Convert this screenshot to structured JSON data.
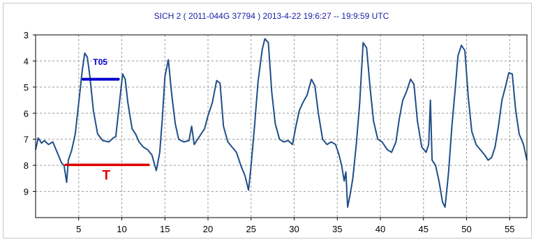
{
  "chart_data": {
    "type": "line",
    "title": "SICH 2   ( 2011-044G   37794 )   2013-4-22  19:6:27 -- 19:9:59 UTC",
    "xlabel": "",
    "ylabel": "",
    "xlim": [
      0,
      57
    ],
    "ylim": [
      3,
      10
    ],
    "y_inverted": true,
    "grid": true,
    "x_ticks": [
      "5",
      "10",
      "15",
      "20",
      "25",
      "30",
      "35",
      "40",
      "45",
      "50",
      "55"
    ],
    "y_ticks": [
      "3",
      "4",
      "5",
      "6",
      "7",
      "8",
      "9"
    ],
    "colors": {
      "series": "#1f4f88",
      "t05_marker": "#0000cc",
      "t_marker": "#dd0000",
      "title": "#1a1aa6",
      "grid": "#9a9a9a"
    },
    "annotations": [
      {
        "label": "T05",
        "x_start": 5.5,
        "x_end": 9.6,
        "y": 4.7,
        "label_x": 7.5,
        "label_y": 4.15
      },
      {
        "label": "T",
        "x_start": 3.5,
        "x_end": 13.1,
        "y": 7.98,
        "label_x": 8.2,
        "label_y": 8.55
      }
    ],
    "series": [
      {
        "values": [
          [
            0.0,
            7.4
          ],
          [
            0.3,
            6.95
          ],
          [
            0.7,
            7.15
          ],
          [
            1.0,
            7.05
          ],
          [
            1.5,
            7.2
          ],
          [
            2.0,
            7.1
          ],
          [
            2.5,
            7.5
          ],
          [
            3.0,
            7.9
          ],
          [
            3.3,
            8.0
          ],
          [
            3.6,
            8.65
          ],
          [
            3.8,
            7.8
          ],
          [
            4.2,
            7.4
          ],
          [
            4.6,
            6.8
          ],
          [
            5.0,
            5.6
          ],
          [
            5.4,
            4.4
          ],
          [
            5.7,
            3.7
          ],
          [
            6.0,
            3.85
          ],
          [
            6.3,
            4.6
          ],
          [
            6.7,
            5.9
          ],
          [
            7.2,
            6.8
          ],
          [
            7.8,
            7.05
          ],
          [
            8.5,
            7.1
          ],
          [
            9.0,
            6.95
          ],
          [
            9.3,
            6.9
          ],
          [
            9.7,
            5.7
          ],
          [
            10.1,
            4.5
          ],
          [
            10.4,
            4.7
          ],
          [
            10.7,
            5.6
          ],
          [
            11.2,
            6.6
          ],
          [
            11.6,
            6.8
          ],
          [
            12.0,
            7.1
          ],
          [
            12.5,
            7.3
          ],
          [
            13.0,
            7.4
          ],
          [
            13.5,
            7.6
          ],
          [
            14.0,
            8.2
          ],
          [
            14.4,
            7.5
          ],
          [
            14.7,
            6.2
          ],
          [
            15.0,
            4.6
          ],
          [
            15.4,
            3.95
          ],
          [
            15.8,
            5.3
          ],
          [
            16.2,
            6.4
          ],
          [
            16.6,
            7.0
          ],
          [
            17.2,
            7.1
          ],
          [
            17.8,
            7.05
          ],
          [
            18.1,
            6.5
          ],
          [
            18.4,
            7.2
          ],
          [
            18.8,
            7.0
          ],
          [
            19.2,
            6.8
          ],
          [
            19.6,
            6.6
          ],
          [
            20.0,
            6.1
          ],
          [
            20.5,
            5.6
          ],
          [
            21.0,
            4.75
          ],
          [
            21.4,
            4.85
          ],
          [
            21.8,
            6.5
          ],
          [
            22.3,
            7.1
          ],
          [
            22.8,
            7.3
          ],
          [
            23.3,
            7.5
          ],
          [
            23.8,
            8.0
          ],
          [
            24.3,
            8.4
          ],
          [
            24.7,
            8.95
          ],
          [
            25.0,
            8.0
          ],
          [
            25.4,
            6.5
          ],
          [
            25.8,
            4.8
          ],
          [
            26.3,
            3.55
          ],
          [
            26.6,
            3.15
          ],
          [
            27.0,
            3.3
          ],
          [
            27.4,
            5.2
          ],
          [
            27.8,
            6.4
          ],
          [
            28.3,
            7.0
          ],
          [
            28.8,
            7.1
          ],
          [
            29.3,
            7.05
          ],
          [
            29.8,
            7.2
          ],
          [
            30.2,
            6.5
          ],
          [
            30.6,
            5.9
          ],
          [
            31.0,
            5.6
          ],
          [
            31.5,
            5.3
          ],
          [
            32.0,
            4.7
          ],
          [
            32.4,
            4.95
          ],
          [
            32.8,
            6.0
          ],
          [
            33.3,
            7.0
          ],
          [
            33.8,
            7.2
          ],
          [
            34.3,
            7.1
          ],
          [
            34.8,
            7.2
          ],
          [
            35.2,
            7.6
          ],
          [
            35.5,
            8.0
          ],
          [
            35.8,
            8.6
          ],
          [
            36.0,
            8.25
          ],
          [
            36.2,
            9.6
          ],
          [
            36.5,
            9.1
          ],
          [
            36.8,
            8.5
          ],
          [
            37.2,
            7.2
          ],
          [
            37.6,
            5.6
          ],
          [
            38.0,
            3.3
          ],
          [
            38.4,
            3.5
          ],
          [
            38.8,
            5.0
          ],
          [
            39.2,
            6.3
          ],
          [
            39.7,
            7.0
          ],
          [
            40.2,
            7.1
          ],
          [
            40.8,
            7.4
          ],
          [
            41.3,
            7.5
          ],
          [
            41.8,
            7.1
          ],
          [
            42.2,
            6.2
          ],
          [
            42.6,
            5.5
          ],
          [
            43.0,
            5.2
          ],
          [
            43.5,
            4.7
          ],
          [
            43.9,
            4.9
          ],
          [
            44.3,
            6.3
          ],
          [
            44.8,
            7.3
          ],
          [
            45.3,
            7.5
          ],
          [
            45.6,
            7.2
          ],
          [
            45.8,
            5.5
          ],
          [
            46.0,
            7.8
          ],
          [
            46.4,
            8.0
          ],
          [
            46.8,
            8.6
          ],
          [
            47.2,
            9.4
          ],
          [
            47.5,
            9.6
          ],
          [
            47.9,
            8.3
          ],
          [
            48.3,
            6.5
          ],
          [
            48.7,
            5.0
          ],
          [
            49.0,
            3.8
          ],
          [
            49.4,
            3.4
          ],
          [
            49.8,
            3.6
          ],
          [
            50.2,
            5.4
          ],
          [
            50.6,
            6.7
          ],
          [
            51.1,
            7.2
          ],
          [
            51.6,
            7.4
          ],
          [
            52.1,
            7.6
          ],
          [
            52.5,
            7.8
          ],
          [
            52.9,
            7.7
          ],
          [
            53.3,
            7.3
          ],
          [
            53.7,
            6.5
          ],
          [
            54.1,
            5.5
          ],
          [
            54.5,
            5.0
          ],
          [
            54.9,
            4.45
          ],
          [
            55.3,
            4.5
          ],
          [
            55.7,
            5.9
          ],
          [
            56.1,
            6.8
          ],
          [
            56.6,
            7.2
          ],
          [
            57.0,
            7.8
          ]
        ]
      }
    ]
  }
}
